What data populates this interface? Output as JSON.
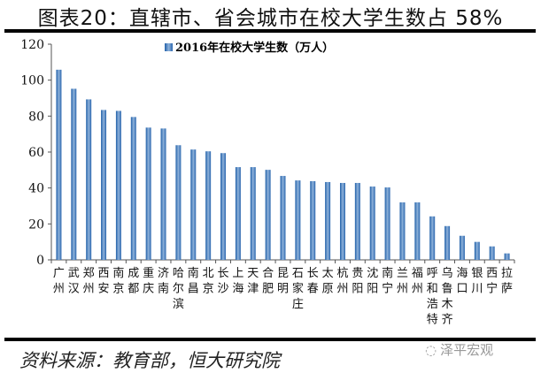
{
  "title": "图表20：直辖市、省会城市在校大学生数占 58%",
  "source": "资料来源：教育部，恒大研究院",
  "watermark": "泽平宏观",
  "chart_data": {
    "type": "bar",
    "title": "",
    "legend": {
      "label": "2016年在校大学生数（万人）",
      "placement": "top-center"
    },
    "series": [
      {
        "name": "2016年在校大学生数（万人）",
        "color": "#3E74B4",
        "values": [
          105.8,
          95.2,
          89.3,
          83.4,
          82.9,
          79.5,
          73.6,
          73.1,
          63.8,
          61.4,
          60.4,
          59.4,
          51.6,
          51.6,
          50.1,
          46.7,
          44.2,
          43.8,
          43.3,
          42.8,
          42.8,
          40.8,
          40.3,
          32.0,
          32.0,
          24.2,
          18.8,
          13.4,
          10.0,
          7.5,
          3.6
        ]
      }
    ],
    "categories": [
      "广州",
      "武汉",
      "郑州",
      "西安",
      "南京",
      "成都",
      "重庆",
      "济南",
      "哈尔滨",
      "南昌",
      "北京",
      "长沙",
      "上海",
      "天津",
      "合肥",
      "昆明",
      "石家庄",
      "长春",
      "太原",
      "杭州",
      "贵阳",
      "沈阳",
      "南宁",
      "兰州",
      "福州",
      "呼和浩特",
      "乌鲁木齐",
      "海口",
      "银川",
      "西宁",
      "拉萨"
    ],
    "ylim": [
      0,
      120
    ],
    "yticks": [
      "0",
      "20",
      "40",
      "60",
      "80",
      "100",
      "120"
    ],
    "grid": false
  }
}
